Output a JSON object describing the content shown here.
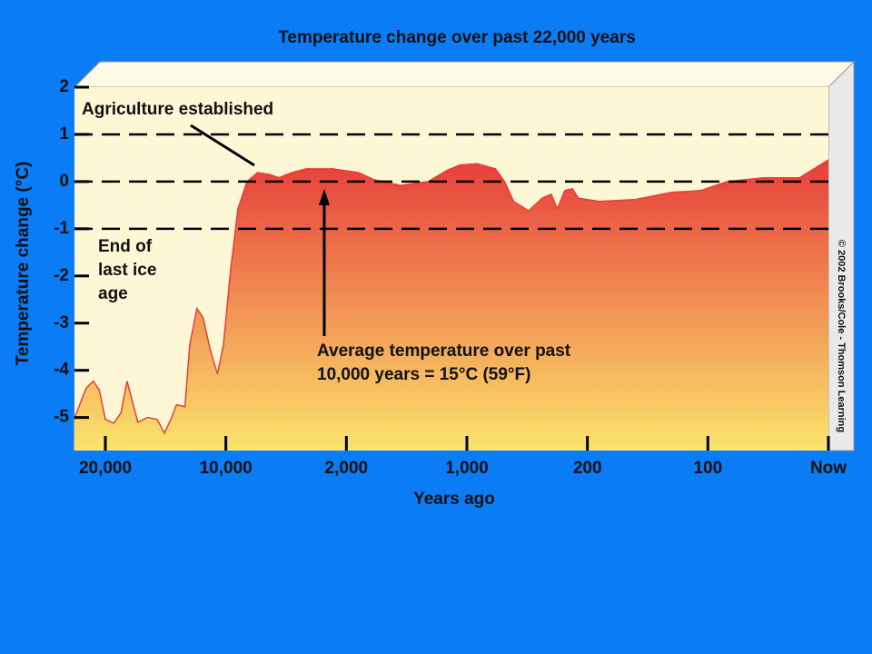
{
  "chart_data": {
    "type": "area",
    "title": "Temperature change over past 22,000 years",
    "x_label": "Years ago",
    "y_label": "Temperature change (°C)",
    "x": [
      22600,
      21600,
      21000,
      20500,
      20000,
      19300,
      18700,
      18200,
      17800,
      17300,
      16500,
      15700,
      15100,
      14500,
      14100,
      13400,
      13000,
      12400,
      11900,
      11300,
      10700,
      10200,
      9700,
      9200,
      8600,
      7900,
      7100,
      6500,
      5600,
      4700,
      2900,
      1900,
      1770,
      1550,
      1320,
      1170,
      1060,
      930,
      810,
      750,
      690,
      590,
      500,
      440,
      400,
      350,
      300,
      260,
      190,
      160,
      130,
      106,
      84,
      54,
      24,
      0
    ],
    "values": [
      -5.04,
      -4.38,
      -4.23,
      -4.42,
      -5.04,
      -5.12,
      -4.9,
      -4.23,
      -4.62,
      -5.1,
      -5.0,
      -5.04,
      -5.33,
      -5.0,
      -4.73,
      -4.77,
      -3.46,
      -2.69,
      -2.88,
      -3.56,
      -4.08,
      -3.46,
      -1.92,
      -0.58,
      0,
      0.19,
      0.15,
      0.08,
      0.19,
      0.27,
      0.27,
      0.19,
      0.04,
      -0.08,
      0,
      0.23,
      0.35,
      0.38,
      0.27,
      0,
      -0.42,
      -0.62,
      -0.35,
      -0.27,
      -0.58,
      -0.19,
      -0.15,
      -0.35,
      -0.42,
      -0.38,
      -0.23,
      -0.19,
      0,
      0.08,
      0.08,
      0.46
    ],
    "color_top": "#e63e3a",
    "color_bottom": "#fbe46c",
    "xlim": [
      22600,
      0
    ],
    "xticks": [
      {
        "value": 20000,
        "label": "20,000"
      },
      {
        "value": 10000,
        "label": "10,000"
      },
      {
        "value": 2000,
        "label": "2,000"
      },
      {
        "value": 1000,
        "label": "1,000"
      },
      200,
      100,
      {
        "value": 0,
        "label": "Now"
      }
    ],
    "ylim": [
      -5.7,
      2
    ],
    "yticks": [
      2,
      1,
      0,
      -1,
      -2,
      -3,
      -4,
      -5
    ],
    "reference_lines": [
      1,
      0,
      -1
    ],
    "annotations": [
      {
        "lines": [
          "Agriculture established"
        ]
      },
      {
        "lines": [
          "End of",
          "last ice",
          "age"
        ]
      },
      {
        "lines": [
          "Average temperature over past",
          "10,000 years = 15°C (59°F)"
        ]
      }
    ],
    "credit": "© 2002 Brooks/Cole - Thomson Learning"
  }
}
